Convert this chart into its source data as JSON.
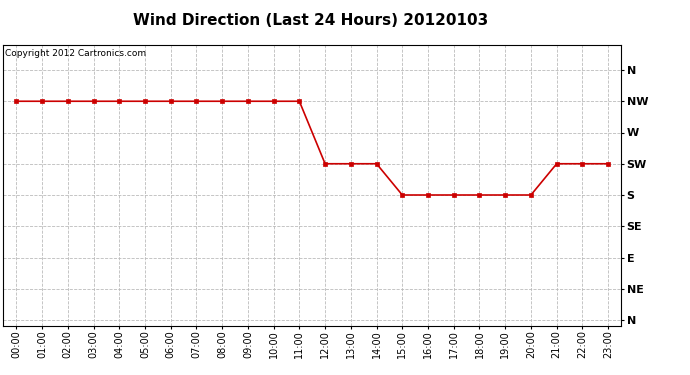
{
  "title": "Wind Direction (Last 24 Hours) 20120103",
  "copyright_text": "Copyright 2012 Cartronics.com",
  "background_color": "#ffffff",
  "line_color": "#cc0000",
  "grid_color": "#bbbbbb",
  "directions": [
    "N",
    "NW",
    "W",
    "SW",
    "S",
    "SE",
    "E",
    "NE",
    "N"
  ],
  "direction_values": [
    8,
    7,
    6,
    5,
    4,
    3,
    2,
    1,
    0
  ],
  "x_hours": [
    0,
    1,
    2,
    3,
    4,
    5,
    6,
    7,
    8,
    9,
    10,
    11,
    12,
    13,
    14,
    15,
    16,
    17,
    18,
    19,
    20,
    21,
    22,
    23
  ],
  "y_values": [
    7,
    7,
    7,
    7,
    7,
    7,
    7,
    7,
    7,
    7,
    7,
    7,
    5,
    5,
    5,
    4,
    4,
    4,
    4,
    4,
    4,
    5,
    5,
    5
  ],
  "ylim": [
    -0.2,
    8.8
  ],
  "xlim": [
    -0.5,
    23.5
  ],
  "title_fontsize": 11,
  "tick_fontsize": 7,
  "ytick_fontsize": 8,
  "copyright_fontsize": 6.5
}
